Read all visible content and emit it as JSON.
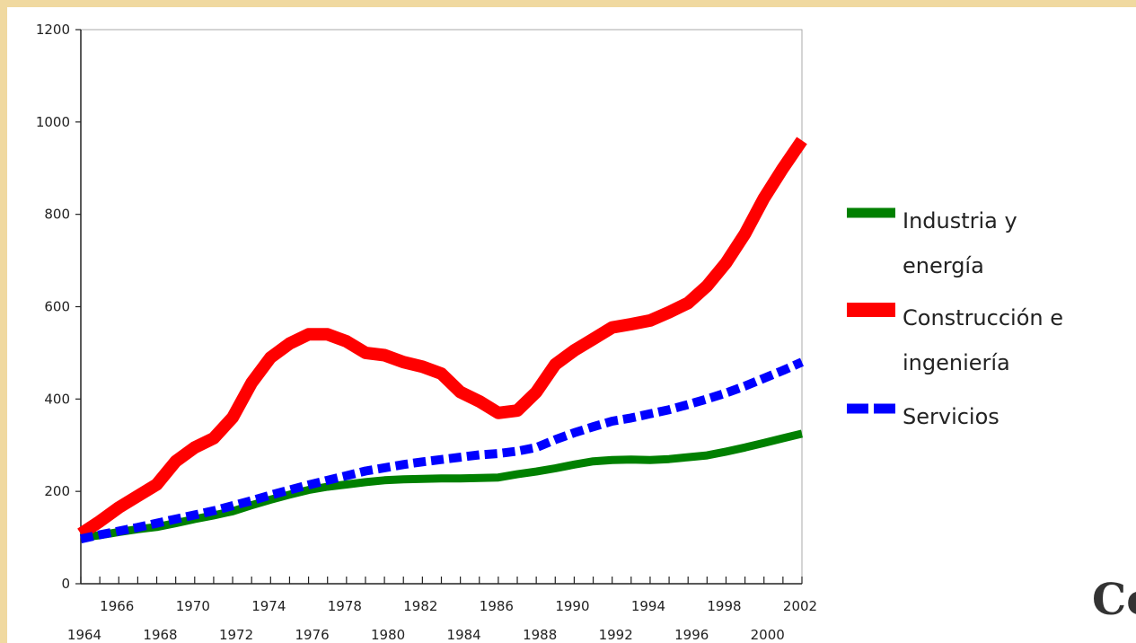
{
  "chart_data": {
    "type": "line",
    "title": "",
    "xlabel": "",
    "ylabel": "",
    "xlim": [
      1964,
      2002
    ],
    "ylim": [
      0,
      1200
    ],
    "yticks": [
      0,
      200,
      400,
      600,
      800,
      1000,
      1200
    ],
    "xticks_top": [
      "1966",
      "1970",
      "1974",
      "1978",
      "1982",
      "1986",
      "1990",
      "1994",
      "1998",
      "2002"
    ],
    "xticks_bottom": [
      "1964",
      "1968",
      "1972",
      "1976",
      "1980",
      "1984",
      "1988",
      "1992",
      "1996",
      "2000"
    ],
    "grid": false,
    "legend_position": "right",
    "x": [
      1964,
      1965,
      1966,
      1967,
      1968,
      1969,
      1970,
      1971,
      1972,
      1973,
      1974,
      1975,
      1976,
      1977,
      1978,
      1979,
      1980,
      1981,
      1982,
      1983,
      1984,
      1985,
      1986,
      1987,
      1988,
      1989,
      1990,
      1991,
      1992,
      1993,
      1994,
      1995,
      1996,
      1997,
      1998,
      1999,
      2000,
      2001,
      2002
    ],
    "series": [
      {
        "name": "Industria y energía",
        "color": "#008000",
        "style": "solid",
        "values": [
          100,
          105,
          112,
          118,
          123,
          131,
          140,
          148,
          157,
          170,
          182,
          193,
          203,
          210,
          215,
          220,
          224,
          226,
          227,
          228,
          228,
          229,
          230,
          237,
          243,
          250,
          258,
          265,
          268,
          269,
          268,
          270,
          274,
          278,
          286,
          295,
          305,
          315,
          325
        ]
      },
      {
        "name": "Construcción e ingeniería",
        "color": "#ff0000",
        "style": "solid",
        "values": [
          108,
          135,
          165,
          190,
          215,
          265,
          295,
          315,
          360,
          435,
          490,
          520,
          540,
          540,
          525,
          500,
          495,
          480,
          470,
          455,
          415,
          395,
          370,
          375,
          415,
          475,
          505,
          530,
          555,
          562,
          570,
          588,
          608,
          645,
          695,
          758,
          835,
          900,
          960
        ]
      },
      {
        "name": "Servicios",
        "color": "#0000ff",
        "style": "dashed",
        "values": [
          97,
          106,
          114,
          122,
          131,
          140,
          149,
          158,
          169,
          180,
          192,
          203,
          214,
          224,
          234,
          244,
          251,
          258,
          264,
          269,
          274,
          279,
          282,
          287,
          295,
          312,
          327,
          340,
          352,
          359,
          368,
          377,
          388,
          400,
          413,
          428,
          445,
          462,
          480
        ]
      }
    ],
    "legend_lines": [
      [
        "Industria y",
        "energía"
      ],
      [
        "Construcción e",
        "ingeniería"
      ],
      [
        "Servicios"
      ]
    ]
  },
  "corner_text": "Co"
}
